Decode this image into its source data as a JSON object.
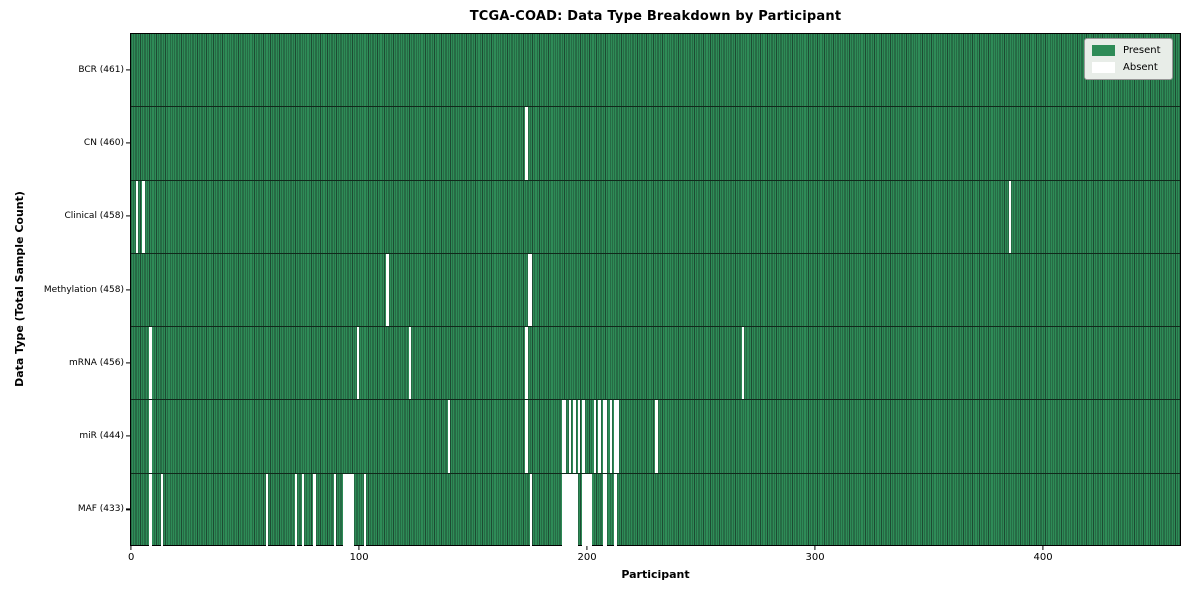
{
  "chart_data": {
    "type": "heatmap",
    "title": "TCGA-COAD: Data Type Breakdown by Participant",
    "xlabel": "Participant",
    "ylabel": "Data Type (Total Sample Count)",
    "x_ticks": [
      0,
      100,
      200,
      300,
      400
    ],
    "x_range": [
      -0.5,
      460.5
    ],
    "n_participants": 461,
    "grid": false,
    "legend_position": "upper right",
    "legend": [
      {
        "label": "Present",
        "color": "#2e8b57"
      },
      {
        "label": "Absent",
        "color": "#ffffff"
      }
    ],
    "colors": {
      "present": "#2e8b57",
      "present_edge": "#1d4b33",
      "absent": "#ffffff",
      "legend_bg": "#e8ede8"
    },
    "rows": [
      {
        "label": "BCR (461)",
        "total_present": 461,
        "absent_participants": []
      },
      {
        "label": "CN (460)",
        "total_present": 460,
        "absent_participants": [
          173
        ]
      },
      {
        "label": "Clinical (458)",
        "total_present": 458,
        "absent_participants": [
          2,
          5,
          385
        ]
      },
      {
        "label": "Methylation (458)",
        "total_present": 458,
        "absent_participants": [
          112,
          174,
          175
        ]
      },
      {
        "label": "mRNA (456)",
        "total_present": 456,
        "absent_participants": [
          8,
          99,
          122,
          173,
          268
        ]
      },
      {
        "label": "miR (444)",
        "total_present": 444,
        "absent_participants": [
          8,
          139,
          173,
          189,
          190,
          192,
          194,
          196,
          198,
          203,
          205,
          207,
          208,
          210,
          212,
          213,
          230
        ]
      },
      {
        "label": "MAF (433)",
        "total_present": 433,
        "absent_participants": [
          8,
          13,
          59,
          72,
          75,
          80,
          89,
          93,
          94,
          95,
          96,
          97,
          102,
          175,
          189,
          190,
          191,
          192,
          193,
          194,
          195,
          198,
          199,
          200,
          201,
          207,
          208,
          212
        ]
      }
    ]
  }
}
